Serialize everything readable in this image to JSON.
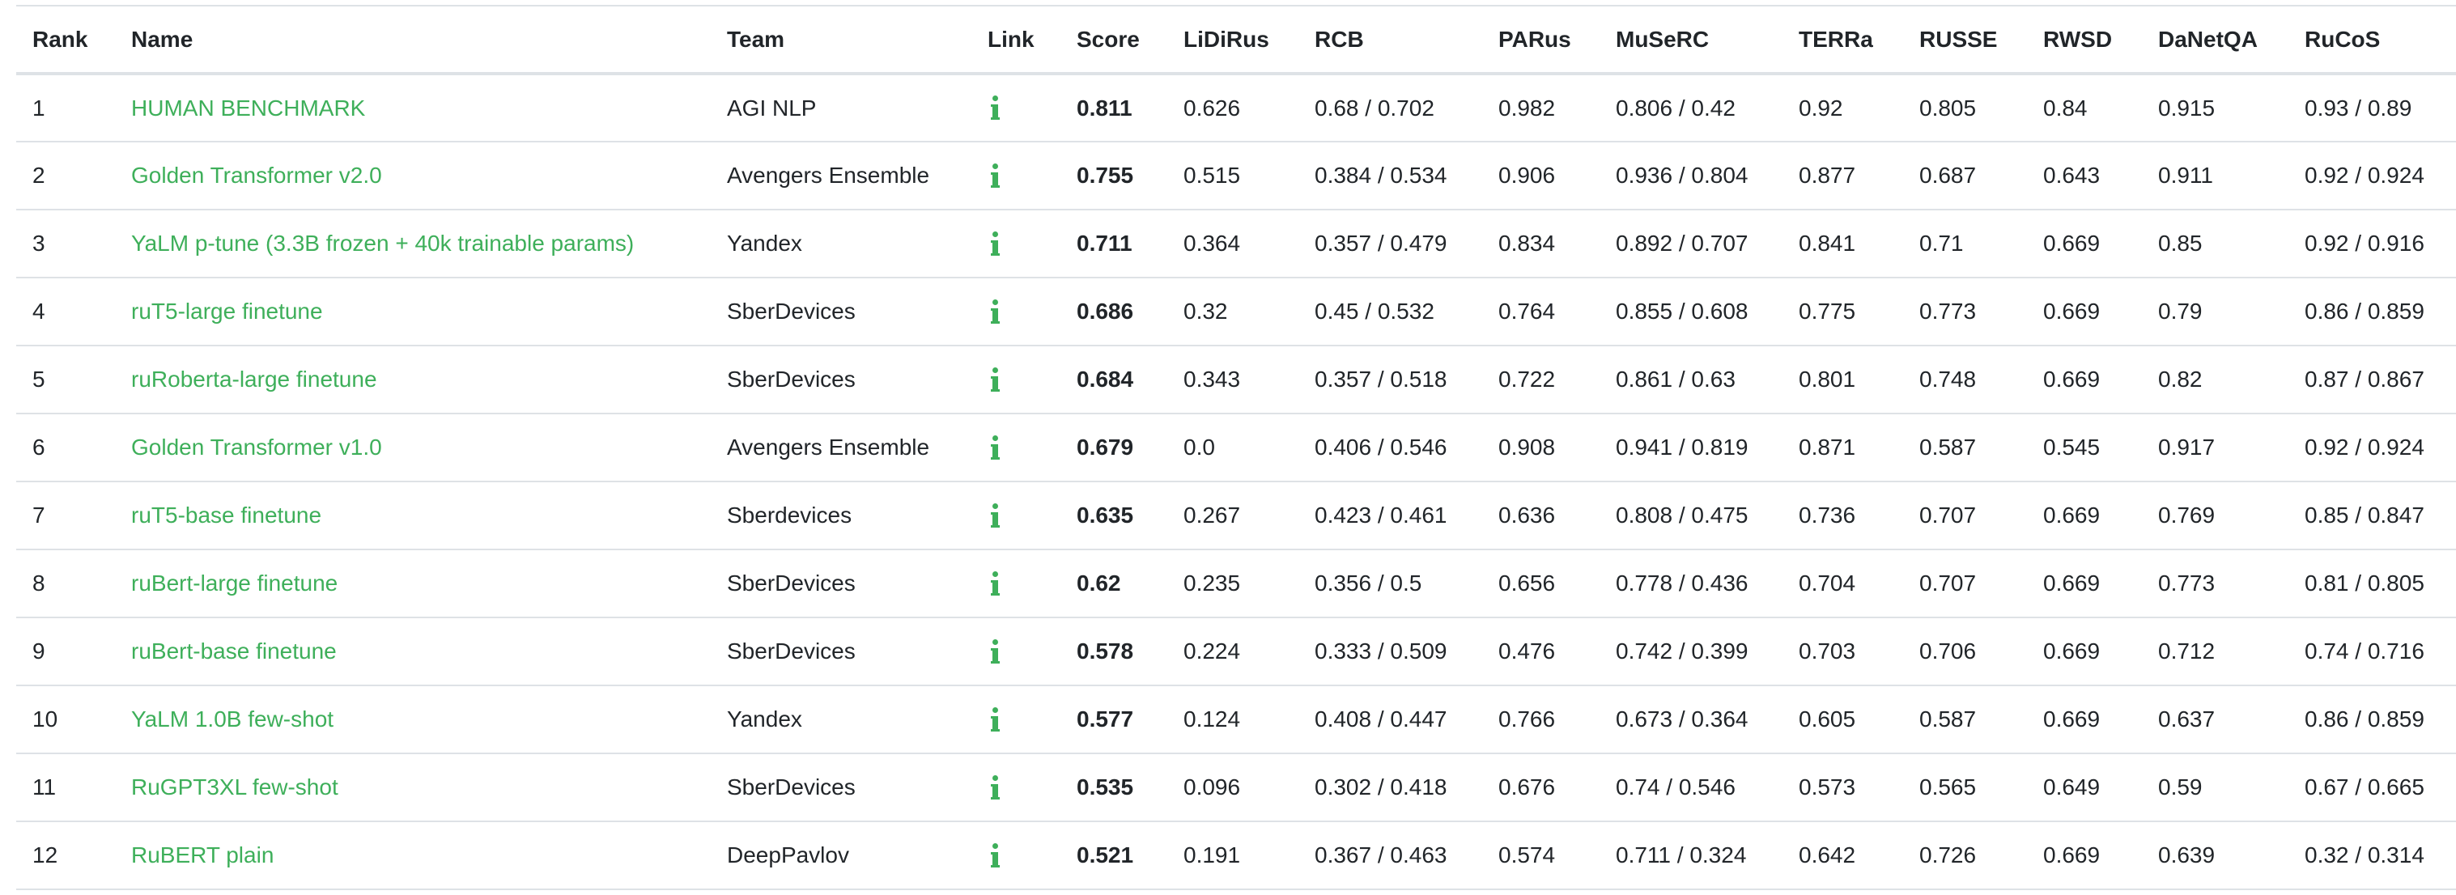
{
  "columns": {
    "rank": "Rank",
    "name": "Name",
    "team": "Team",
    "link": "Link",
    "score": "Score",
    "lidirus": "LiDiRus",
    "rcb": "RCB",
    "parus": "PARus",
    "muserc": "MuSeRC",
    "terra": "TERRa",
    "russe": "RUSSE",
    "rwsd": "RWSD",
    "danetqa": "DaNetQA",
    "rucos": "RuCoS"
  },
  "icons": {
    "link": "info-icon",
    "accent_color": "#3eaf5a"
  },
  "rows": [
    {
      "rank": "1",
      "name": "HUMAN BENCHMARK",
      "team": "AGI NLP",
      "score": "0.811",
      "lidirus": "0.626",
      "rcb": "0.68 / 0.702",
      "parus": "0.982",
      "muserc": "0.806 / 0.42",
      "terra": "0.92",
      "russe": "0.805",
      "rwsd": "0.84",
      "danetqa": "0.915",
      "rucos": "0.93 / 0.89"
    },
    {
      "rank": "2",
      "name": "Golden Transformer v2.0",
      "team": "Avengers Ensemble",
      "score": "0.755",
      "lidirus": "0.515",
      "rcb": "0.384 / 0.534",
      "parus": "0.906",
      "muserc": "0.936 / 0.804",
      "terra": "0.877",
      "russe": "0.687",
      "rwsd": "0.643",
      "danetqa": "0.911",
      "rucos": "0.92 / 0.924"
    },
    {
      "rank": "3",
      "name": "YaLM p-tune (3.3B frozen + 40k trainable params)",
      "team": "Yandex",
      "score": "0.711",
      "lidirus": "0.364",
      "rcb": "0.357 / 0.479",
      "parus": "0.834",
      "muserc": "0.892 / 0.707",
      "terra": "0.841",
      "russe": "0.71",
      "rwsd": "0.669",
      "danetqa": "0.85",
      "rucos": "0.92 / 0.916"
    },
    {
      "rank": "4",
      "name": "ruT5-large finetune",
      "team": "SberDevices",
      "score": "0.686",
      "lidirus": "0.32",
      "rcb": "0.45 / 0.532",
      "parus": "0.764",
      "muserc": "0.855 / 0.608",
      "terra": "0.775",
      "russe": "0.773",
      "rwsd": "0.669",
      "danetqa": "0.79",
      "rucos": "0.86 / 0.859"
    },
    {
      "rank": "5",
      "name": "ruRoberta-large finetune",
      "team": "SberDevices",
      "score": "0.684",
      "lidirus": "0.343",
      "rcb": "0.357 / 0.518",
      "parus": "0.722",
      "muserc": "0.861 / 0.63",
      "terra": "0.801",
      "russe": "0.748",
      "rwsd": "0.669",
      "danetqa": "0.82",
      "rucos": "0.87 / 0.867"
    },
    {
      "rank": "6",
      "name": "Golden Transformer v1.0",
      "team": "Avengers Ensemble",
      "score": "0.679",
      "lidirus": "0.0",
      "rcb": "0.406 / 0.546",
      "parus": "0.908",
      "muserc": "0.941 / 0.819",
      "terra": "0.871",
      "russe": "0.587",
      "rwsd": "0.545",
      "danetqa": "0.917",
      "rucos": "0.92 / 0.924"
    },
    {
      "rank": "7",
      "name": "ruT5-base finetune",
      "team": "Sberdevices",
      "score": "0.635",
      "lidirus": "0.267",
      "rcb": "0.423 / 0.461",
      "parus": "0.636",
      "muserc": "0.808 / 0.475",
      "terra": "0.736",
      "russe": "0.707",
      "rwsd": "0.669",
      "danetqa": "0.769",
      "rucos": "0.85 / 0.847"
    },
    {
      "rank": "8",
      "name": "ruBert-large finetune",
      "team": "SberDevices",
      "score": "0.62",
      "lidirus": "0.235",
      "rcb": "0.356 / 0.5",
      "parus": "0.656",
      "muserc": "0.778 / 0.436",
      "terra": "0.704",
      "russe": "0.707",
      "rwsd": "0.669",
      "danetqa": "0.773",
      "rucos": "0.81 / 0.805"
    },
    {
      "rank": "9",
      "name": "ruBert-base finetune",
      "team": "SberDevices",
      "score": "0.578",
      "lidirus": "0.224",
      "rcb": "0.333 / 0.509",
      "parus": "0.476",
      "muserc": "0.742 / 0.399",
      "terra": "0.703",
      "russe": "0.706",
      "rwsd": "0.669",
      "danetqa": "0.712",
      "rucos": "0.74 / 0.716"
    },
    {
      "rank": "10",
      "name": "YaLM 1.0B few-shot",
      "team": "Yandex",
      "score": "0.577",
      "lidirus": "0.124",
      "rcb": "0.408 / 0.447",
      "parus": "0.766",
      "muserc": "0.673 / 0.364",
      "terra": "0.605",
      "russe": "0.587",
      "rwsd": "0.669",
      "danetqa": "0.637",
      "rucos": "0.86 / 0.859"
    },
    {
      "rank": "11",
      "name": "RuGPT3XL few-shot",
      "team": "SberDevices",
      "score": "0.535",
      "lidirus": "0.096",
      "rcb": "0.302 / 0.418",
      "parus": "0.676",
      "muserc": "0.74 / 0.546",
      "terra": "0.573",
      "russe": "0.565",
      "rwsd": "0.649",
      "danetqa": "0.59",
      "rucos": "0.67 / 0.665"
    },
    {
      "rank": "12",
      "name": "RuBERT plain",
      "team": "DeepPavlov",
      "score": "0.521",
      "lidirus": "0.191",
      "rcb": "0.367 / 0.463",
      "parus": "0.574",
      "muserc": "0.711 / 0.324",
      "terra": "0.642",
      "russe": "0.726",
      "rwsd": "0.669",
      "danetqa": "0.639",
      "rucos": "0.32 / 0.314"
    }
  ]
}
